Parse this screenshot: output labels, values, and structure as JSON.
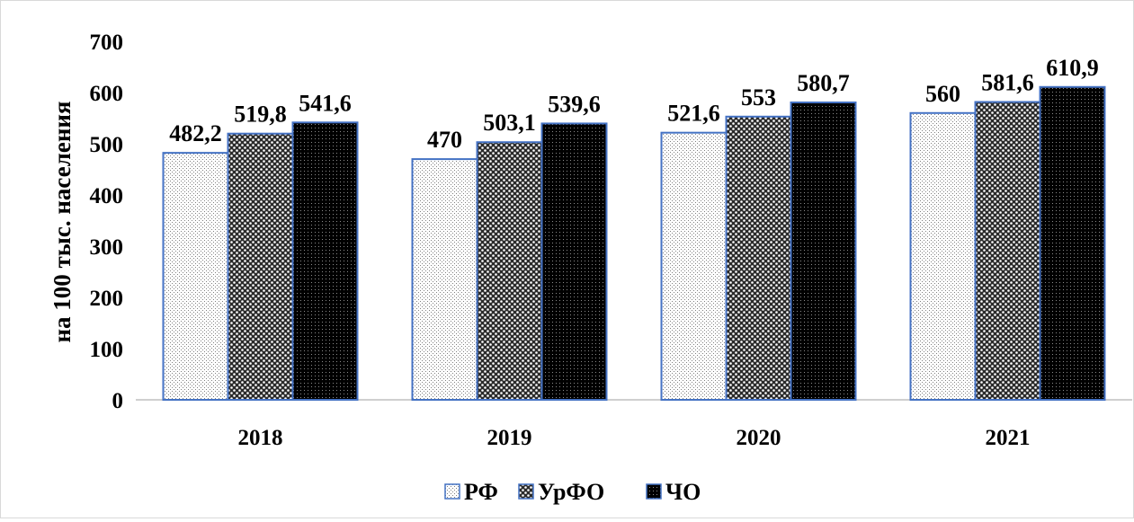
{
  "chart_data": {
    "type": "bar",
    "categories": [
      "2018",
      "2019",
      "2020",
      "2021"
    ],
    "series": [
      {
        "name": "РФ",
        "values": [
          482.2,
          470,
          521.6,
          560
        ],
        "labels": [
          "482,2",
          "470",
          "521,6",
          "560"
        ],
        "pattern": "fine-dots"
      },
      {
        "name": "УрФО",
        "values": [
          519.8,
          503.1,
          553,
          581.6
        ],
        "labels": [
          "519,8",
          "503,1",
          "553",
          "581,6"
        ],
        "pattern": "checker-dots"
      },
      {
        "name": "ЧО",
        "values": [
          541.6,
          539.6,
          580.7,
          610.9
        ],
        "labels": [
          "541,6",
          "539,6",
          "580,7",
          "610,9"
        ],
        "pattern": "dark-dots"
      }
    ],
    "title": "",
    "xlabel": "",
    "ylabel": "на 100 тыс. населения",
    "ylim": [
      0,
      700
    ],
    "yticks": [
      0,
      100,
      200,
      300,
      400,
      500,
      600,
      700
    ],
    "grid": false,
    "legend_position": "bottom",
    "bar_outline_color": "#4472c4"
  }
}
